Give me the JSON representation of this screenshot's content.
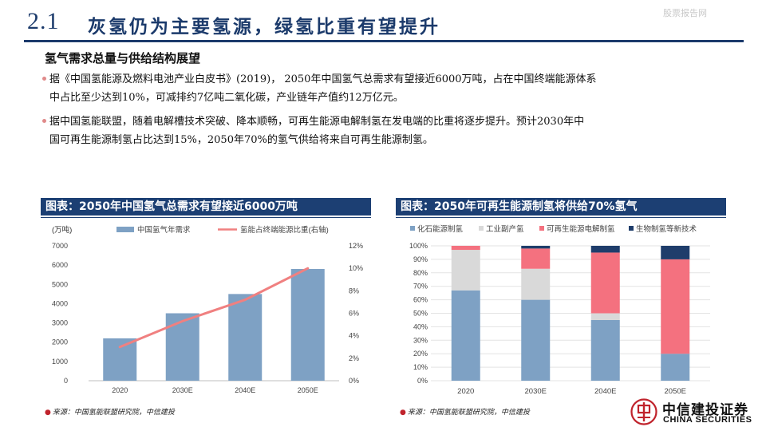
{
  "header": {
    "section_number": "2.1",
    "title": "灰氢仍为主要氢源，绿氢比重有望提升",
    "watermark": "股票报告网"
  },
  "section_heading": "氢气需求总量与供给结构展望",
  "bullets": [
    {
      "line1": "据《中国氢能源及燃料电池产业白皮书》(2019)，  2050年中国氢气总需求有望接近6000万吨，占在中国终端能源体系",
      "line2": "中占比至少达到10%，可减排约7亿吨二氧化碳，产业链年产值约12万亿元。"
    },
    {
      "line1": "据中国氢能联盟，随着电解槽技术突破、降本顺畅，可再生能源电解制氢在发电端的比重将逐步提升。预计2030年中",
      "line2": "国可再生能源制氢占比达到15%，2050年70%的氢气供给将来自可再生能源制氢。"
    }
  ],
  "left_panel": {
    "header": "图表：2050年中国氢气总需求有望接近6000万吨",
    "source": "来源：中国氢能联盟研究院，中信建投"
  },
  "right_panel": {
    "header": "图表：2050年可再生能源制氢将供给70%氢气",
    "source": "来源：中国氢能联盟研究院，中信建投"
  },
  "chart_data": [
    {
      "type": "bar",
      "categories": [
        "2020",
        "2030E",
        "2040E",
        "2050E"
      ],
      "unit_label": "(万吨)",
      "series": [
        {
          "name": "中国氢气年需求",
          "kind": "bar",
          "axis": "left",
          "values": [
            2200,
            3500,
            4500,
            5800
          ],
          "color": "#7ea1c4"
        },
        {
          "name": "氢能占终端能源比重(右轴)",
          "kind": "line",
          "axis": "right",
          "values": [
            3.0,
            5.3,
            7.2,
            10.0
          ],
          "color": "#f08080"
        }
      ],
      "yticks_left": [
        "0",
        "1000",
        "2000",
        "3000",
        "4000",
        "5000",
        "6000",
        "7000"
      ],
      "yticks_right": [
        "0%",
        "2%",
        "4%",
        "6%",
        "8%",
        "10%",
        "12%"
      ],
      "ylim_left": [
        0,
        7000
      ],
      "ylim_right": [
        0,
        12
      ],
      "legend_position": "top",
      "grid": false
    },
    {
      "type": "bar",
      "stacked": true,
      "categories": [
        "2020",
        "2030E",
        "2040E",
        "2050E"
      ],
      "series": [
        {
          "name": "化石能源制氢",
          "color": "#7ea1c4",
          "values": [
            67,
            60,
            45,
            20
          ]
        },
        {
          "name": "工业副产氢",
          "color": "#d9d9d9",
          "values": [
            30,
            23,
            5,
            0
          ]
        },
        {
          "name": "可再生能源电解制氢",
          "color": "#f4717f",
          "values": [
            3,
            15,
            45,
            70
          ]
        },
        {
          "name": "生物制氢等新技术",
          "color": "#1f3d6b",
          "values": [
            0,
            2,
            5,
            10
          ]
        }
      ],
      "yticks": [
        "0%",
        "10%",
        "20%",
        "30%",
        "40%",
        "50%",
        "60%",
        "70%",
        "80%",
        "90%",
        "100%"
      ],
      "ylim": [
        0,
        100
      ],
      "legend_position": "top",
      "grid": true
    }
  ],
  "logo": {
    "cn": "中信建投证券",
    "en": "CHINA SECURITIES",
    "color": "#c0232c"
  }
}
